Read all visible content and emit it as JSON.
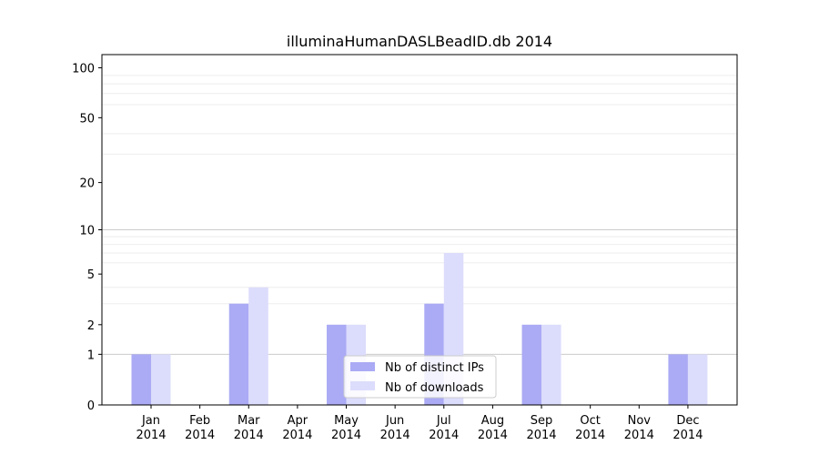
{
  "chart_data": {
    "type": "bar",
    "title": "illuminaHumanDASLBeadID.db 2014",
    "xlabel": "",
    "ylabel": "",
    "y_scale": "log(1+y)",
    "ylim": [
      0,
      120
    ],
    "y_ticks": [
      0,
      1,
      2,
      5,
      10,
      20,
      50,
      100
    ],
    "grid": true,
    "legend_position": "bottom-center",
    "categories": [
      {
        "month": "Jan",
        "year": "2014"
      },
      {
        "month": "Feb",
        "year": "2014"
      },
      {
        "month": "Mar",
        "year": "2014"
      },
      {
        "month": "Apr",
        "year": "2014"
      },
      {
        "month": "May",
        "year": "2014"
      },
      {
        "month": "Jun",
        "year": "2014"
      },
      {
        "month": "Jul",
        "year": "2014"
      },
      {
        "month": "Aug",
        "year": "2014"
      },
      {
        "month": "Sep",
        "year": "2014"
      },
      {
        "month": "Oct",
        "year": "2014"
      },
      {
        "month": "Nov",
        "year": "2014"
      },
      {
        "month": "Dec",
        "year": "2014"
      }
    ],
    "series": [
      {
        "name": "Nb of distinct IPs",
        "color": "#aaaaf5",
        "values": [
          1,
          0,
          3,
          0,
          2,
          0,
          3,
          0,
          2,
          0,
          0,
          1
        ]
      },
      {
        "name": "Nb of downloads",
        "color": "#dcdcfc",
        "values": [
          1,
          0,
          4,
          0,
          2,
          0,
          7,
          0,
          2,
          0,
          0,
          1
        ]
      }
    ]
  }
}
